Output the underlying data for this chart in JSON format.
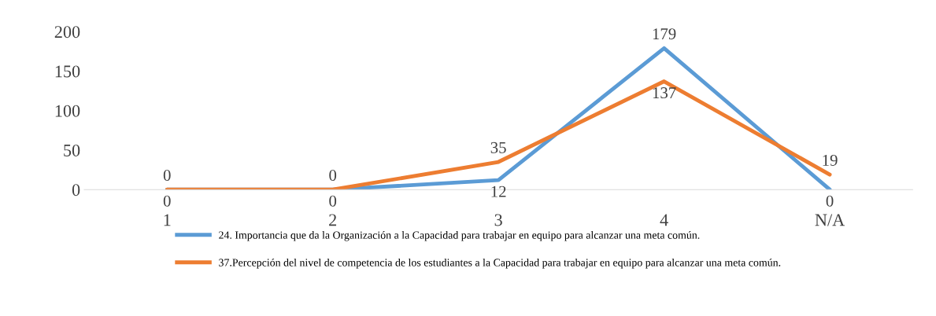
{
  "chart_data": {
    "type": "line",
    "categories": [
      "1",
      "2",
      "3",
      "4",
      "N/A"
    ],
    "series": [
      {
        "name": "24. Importancia que da la Organización a la Capacidad para trabajar en equipo para alcanzar una meta común.",
        "color": "#5b9bd5",
        "values": [
          0,
          0,
          12,
          179,
          0
        ]
      },
      {
        "name": "37.Percepción del nivel de competencia de los estudiantes a la Capacidad para trabajar en equipo para alcanzar una meta común.",
        "color": "#ed7d31",
        "values": [
          0,
          0,
          35,
          137,
          19
        ]
      }
    ],
    "ylim": [
      0,
      200
    ],
    "yticks": [
      0,
      50,
      100,
      150,
      200
    ],
    "data_labels": true,
    "legend": "bottom",
    "grid": false,
    "marker": "none",
    "line_style": "solid"
  }
}
